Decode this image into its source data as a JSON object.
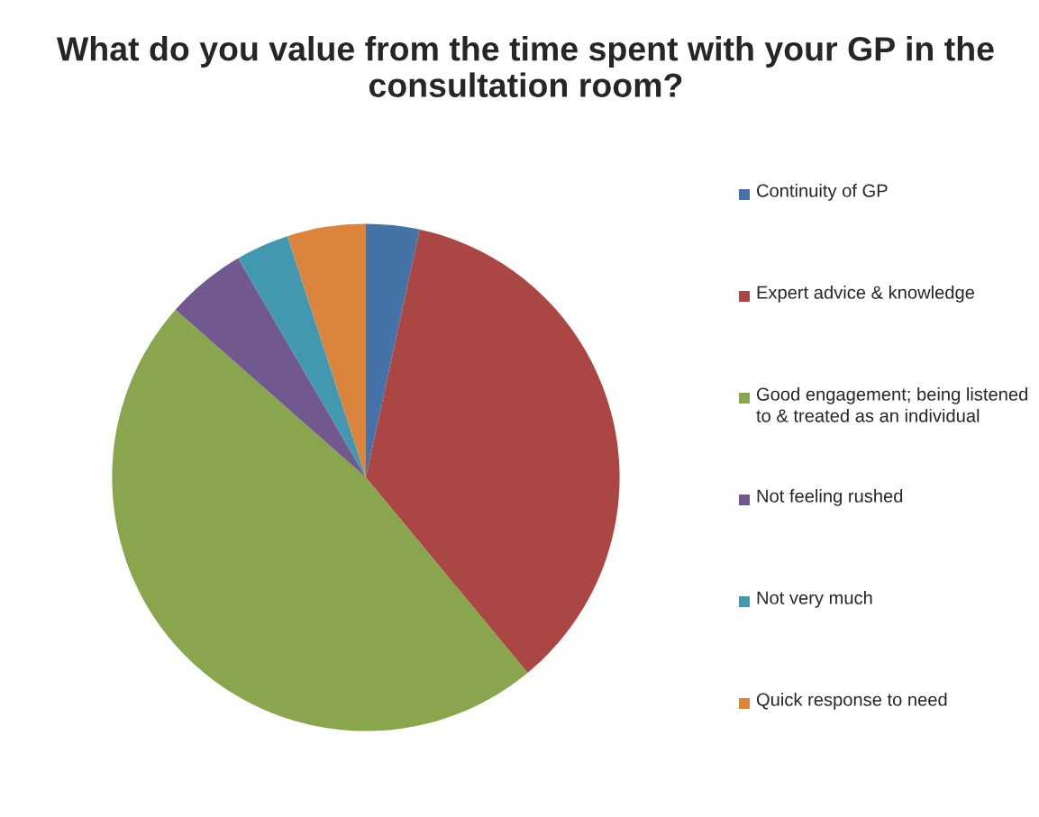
{
  "chart_data": {
    "type": "pie",
    "title": "What do you value from the time spent with your GP in the consultation room?",
    "categories": [
      "Continuity of GP",
      "Expert advice & knowledge",
      "Good engagement; being listened to & treated as an individual",
      "Not feeling rushed",
      "Not very much",
      "Quick response to need"
    ],
    "values": [
      3.4,
      35.6,
      47.5,
      5.1,
      3.4,
      5.0
    ],
    "colors": [
      "#4572a7",
      "#aa4643",
      "#89a54e",
      "#71588f",
      "#4198af",
      "#db843d"
    ],
    "legend": "right"
  }
}
